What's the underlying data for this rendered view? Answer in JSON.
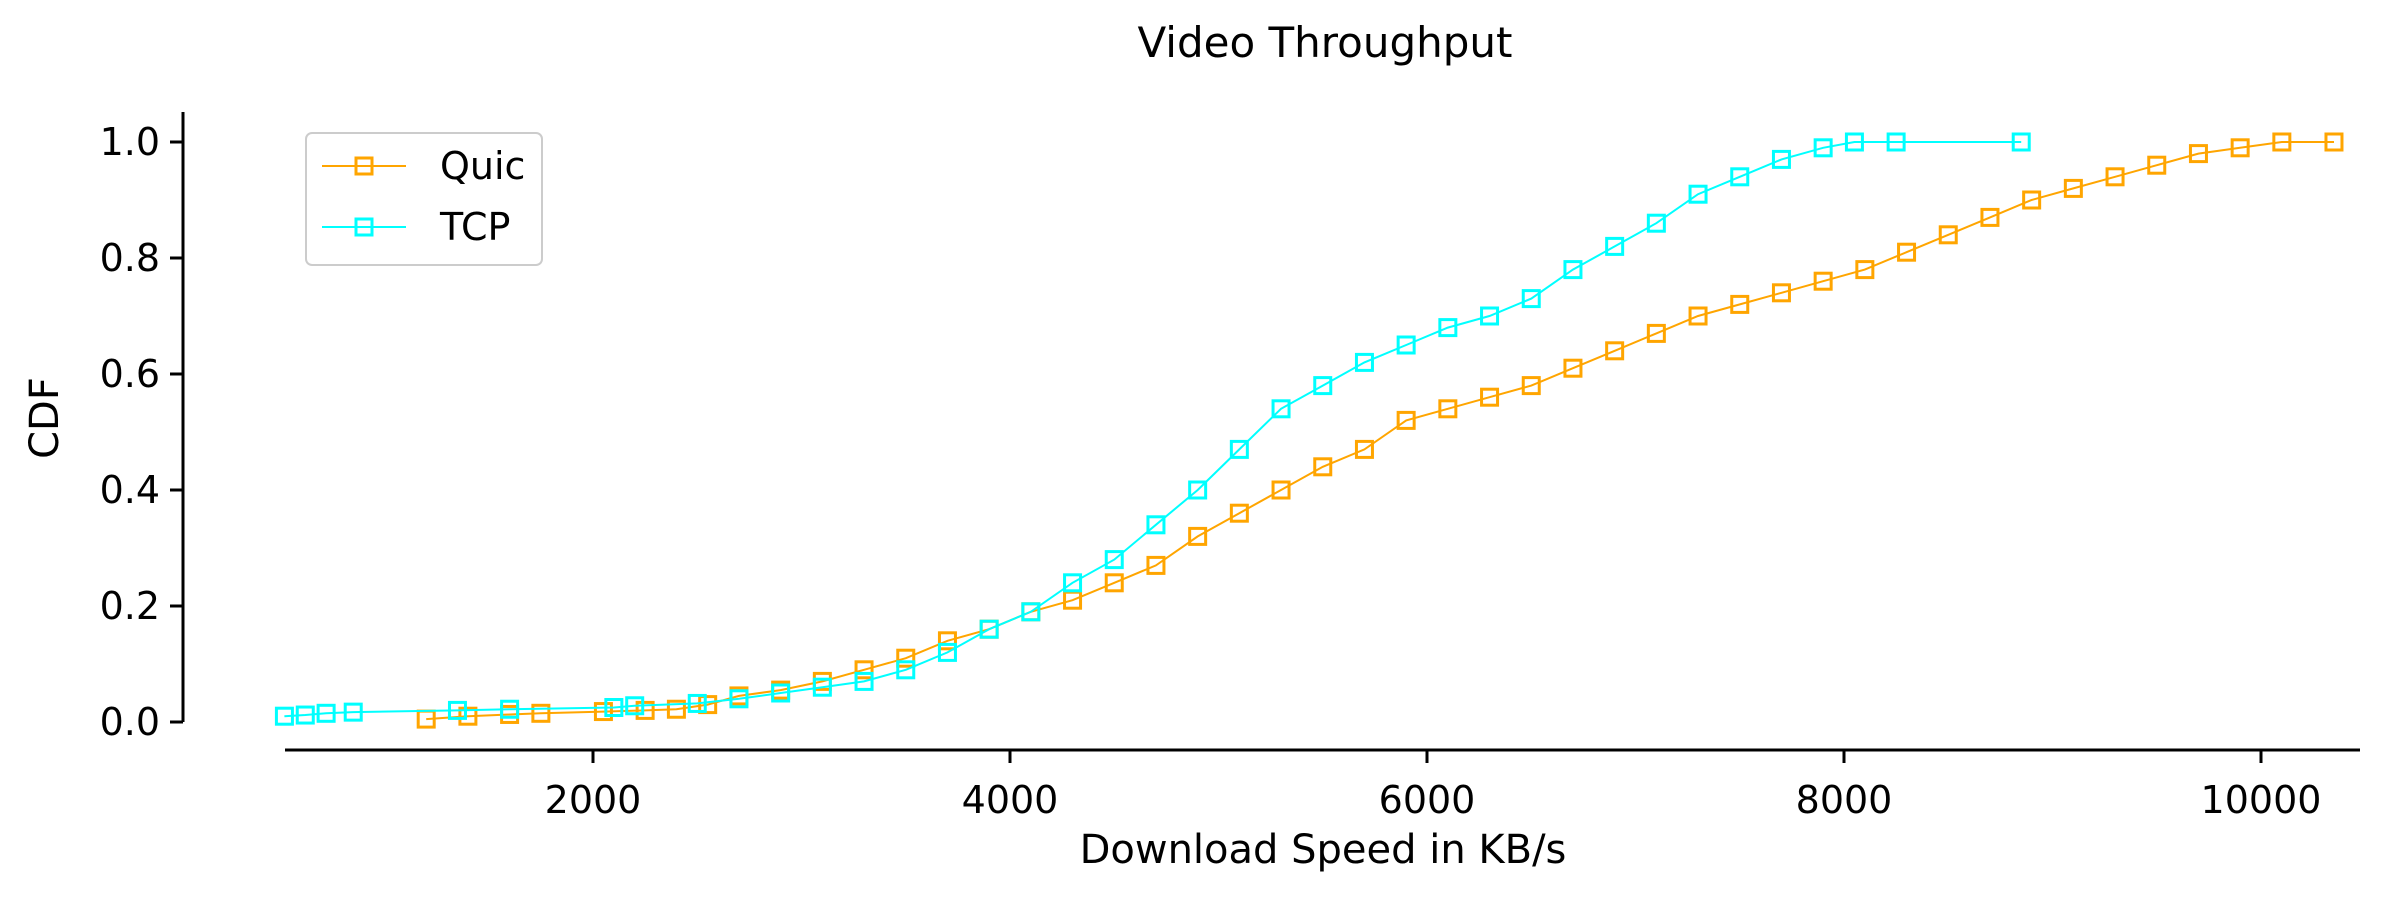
{
  "chart_data": {
    "type": "line",
    "title": "Video Throughput",
    "xlabel": "Download Speed in KB/s",
    "ylabel": "CDF",
    "xlim": [
      500,
      10500
    ],
    "ylim": [
      0,
      1.0
    ],
    "xticks": [
      2000,
      4000,
      6000,
      8000,
      10000
    ],
    "xtick_labels": [
      "2000",
      "4000",
      "6000",
      "8000",
      "10000"
    ],
    "yticks": [
      0.0,
      0.2,
      0.4,
      0.6,
      0.8,
      1.0
    ],
    "ytick_labels": [
      "0.0",
      "0.2",
      "0.4",
      "0.6",
      "0.8",
      "1.0"
    ],
    "grid": false,
    "legend_position": "top-left",
    "marker": "open-square",
    "series": [
      {
        "name": "Quic",
        "color": "#ffa500",
        "points": [
          [
            1200,
            0.005
          ],
          [
            1400,
            0.01
          ],
          [
            1600,
            0.013
          ],
          [
            1750,
            0.015
          ],
          [
            2050,
            0.018
          ],
          [
            2250,
            0.02
          ],
          [
            2400,
            0.022
          ],
          [
            2550,
            0.03
          ],
          [
            2700,
            0.045
          ],
          [
            2900,
            0.055
          ],
          [
            3100,
            0.07
          ],
          [
            3300,
            0.09
          ],
          [
            3500,
            0.11
          ],
          [
            3700,
            0.14
          ],
          [
            3900,
            0.16
          ],
          [
            4100,
            0.19
          ],
          [
            4300,
            0.21
          ],
          [
            4500,
            0.24
          ],
          [
            4700,
            0.27
          ],
          [
            4900,
            0.32
          ],
          [
            5100,
            0.36
          ],
          [
            5300,
            0.4
          ],
          [
            5500,
            0.44
          ],
          [
            5700,
            0.47
          ],
          [
            5900,
            0.52
          ],
          [
            6100,
            0.54
          ],
          [
            6300,
            0.56
          ],
          [
            6500,
            0.58
          ],
          [
            6700,
            0.61
          ],
          [
            6900,
            0.64
          ],
          [
            7100,
            0.67
          ],
          [
            7300,
            0.7
          ],
          [
            7500,
            0.72
          ],
          [
            7700,
            0.74
          ],
          [
            7900,
            0.76
          ],
          [
            8100,
            0.78
          ],
          [
            8300,
            0.81
          ],
          [
            8500,
            0.84
          ],
          [
            8700,
            0.87
          ],
          [
            8900,
            0.9
          ],
          [
            9100,
            0.92
          ],
          [
            9300,
            0.94
          ],
          [
            9500,
            0.96
          ],
          [
            9700,
            0.98
          ],
          [
            9900,
            0.99
          ],
          [
            10100,
            1.0
          ],
          [
            10350,
            1.0
          ]
        ]
      },
      {
        "name": "TCP",
        "color": "#00ffff",
        "points": [
          [
            520,
            0.01
          ],
          [
            620,
            0.012
          ],
          [
            720,
            0.015
          ],
          [
            850,
            0.017
          ],
          [
            1350,
            0.02
          ],
          [
            1600,
            0.022
          ],
          [
            2100,
            0.025
          ],
          [
            2200,
            0.028
          ],
          [
            2500,
            0.032
          ],
          [
            2700,
            0.04
          ],
          [
            2900,
            0.05
          ],
          [
            3100,
            0.06
          ],
          [
            3300,
            0.07
          ],
          [
            3500,
            0.09
          ],
          [
            3700,
            0.12
          ],
          [
            3900,
            0.16
          ],
          [
            4100,
            0.19
          ],
          [
            4300,
            0.24
          ],
          [
            4500,
            0.28
          ],
          [
            4700,
            0.34
          ],
          [
            4900,
            0.4
          ],
          [
            5100,
            0.47
          ],
          [
            5300,
            0.54
          ],
          [
            5500,
            0.58
          ],
          [
            5700,
            0.62
          ],
          [
            5900,
            0.65
          ],
          [
            6100,
            0.68
          ],
          [
            6300,
            0.7
          ],
          [
            6500,
            0.73
          ],
          [
            6700,
            0.78
          ],
          [
            6900,
            0.82
          ],
          [
            7100,
            0.86
          ],
          [
            7300,
            0.91
          ],
          [
            7500,
            0.94
          ],
          [
            7700,
            0.97
          ],
          [
            7900,
            0.99
          ],
          [
            8050,
            1.0
          ],
          [
            8250,
            1.0
          ],
          [
            8850,
            1.0
          ]
        ]
      }
    ]
  }
}
